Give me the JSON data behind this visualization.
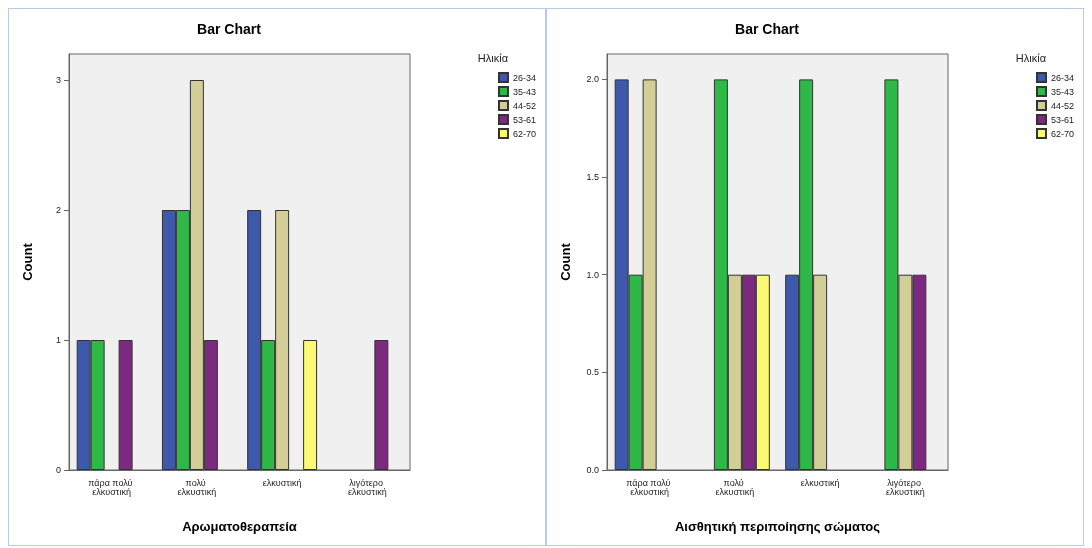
{
  "chart_data": [
    {
      "type": "bar",
      "title": "Bar Chart",
      "xlabel": "Αρωματοθεραπεία",
      "ylabel": "Count",
      "legend_title": "Ηλικία",
      "legend": "top right",
      "grid": false,
      "categories": [
        "πάρα πολύ ελκυστική",
        "πολύ ελκυστική",
        "ελκυστική",
        "λιγότερο ελκυστική"
      ],
      "ylim": [
        0,
        3.2
      ],
      "yticks": [
        0,
        1,
        2,
        3
      ],
      "series": [
        {
          "name": "26-34",
          "color": "#3e58ac",
          "values": [
            1,
            2,
            2,
            null
          ]
        },
        {
          "name": "35-43",
          "color": "#2eb848",
          "values": [
            1,
            2,
            1,
            null
          ]
        },
        {
          "name": "44-52",
          "color": "#d3ce97",
          "values": [
            null,
            3,
            2,
            null
          ]
        },
        {
          "name": "53-61",
          "color": "#7b2a7f",
          "values": [
            1,
            1,
            null,
            1
          ]
        },
        {
          "name": "62-70",
          "color": "#fbf873",
          "values": [
            null,
            null,
            1,
            null
          ]
        }
      ]
    },
    {
      "type": "bar",
      "title": "Bar Chart",
      "xlabel": "Αισθητική περιποίησης σώματος",
      "ylabel": "Count",
      "legend_title": "Ηλικία",
      "legend": "top right",
      "grid": false,
      "categories": [
        "πάρα πολύ ελκυστική",
        "πολύ ελκυστική",
        "ελκυστική",
        "λιγότερο ελκυστική"
      ],
      "ylim": [
        0,
        2.13
      ],
      "yticks": [
        {
          "value": 0,
          "label": "0.0"
        },
        {
          "value": 0.5,
          "label": "0.5"
        },
        {
          "value": 1,
          "label": "1.0"
        },
        {
          "value": 1.5,
          "label": "1.5"
        },
        {
          "value": 2,
          "label": "2.0"
        }
      ],
      "series": [
        {
          "name": "26-34",
          "color": "#3e58ac",
          "values": [
            2,
            null,
            1,
            null
          ]
        },
        {
          "name": "35-43",
          "color": "#2eb848",
          "values": [
            1,
            2,
            2,
            2
          ]
        },
        {
          "name": "44-52",
          "color": "#d3ce97",
          "values": [
            2,
            1,
            1,
            1
          ]
        },
        {
          "name": "53-61",
          "color": "#7b2a7f",
          "values": [
            null,
            1,
            null,
            1
          ]
        },
        {
          "name": "62-70",
          "color": "#fbf873",
          "values": [
            null,
            1,
            null,
            null
          ]
        }
      ]
    }
  ]
}
